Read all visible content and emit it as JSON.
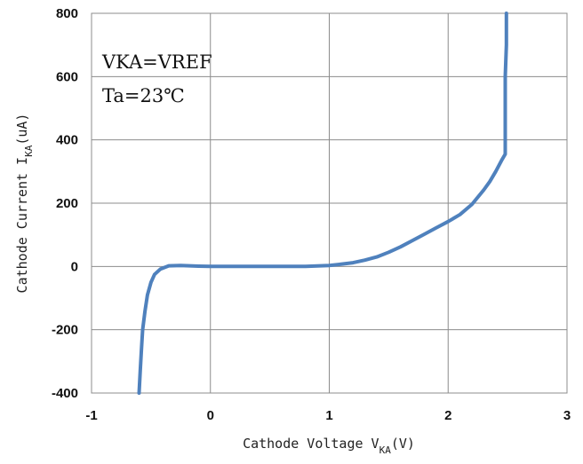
{
  "chart_data": {
    "type": "line",
    "xlabel": {
      "main": "Cathode Voltage V",
      "sub": "KA",
      "suffix": "(V)"
    },
    "ylabel": {
      "main": "Cathode Current I",
      "sub": "KA",
      "suffix": "(uA)"
    },
    "xlim": [
      -1,
      3
    ],
    "ylim": [
      -400,
      800
    ],
    "xticks": [
      -1,
      0,
      1,
      2,
      3
    ],
    "yticks": [
      -400,
      -200,
      0,
      200,
      400,
      600,
      800
    ],
    "grid": true,
    "annotations": [
      "VKA=VREF",
      "Ta=23℃"
    ],
    "line_color": "#4F81BD",
    "series": [
      {
        "x": [
          -0.6,
          -0.59,
          -0.58,
          -0.57,
          -0.55,
          -0.53,
          -0.5,
          -0.47,
          -0.42,
          -0.35,
          -0.25,
          -0.1,
          0,
          0.2,
          0.5,
          0.8,
          1.0,
          1.1,
          1.2,
          1.3,
          1.4,
          1.5,
          1.6,
          1.7,
          1.8,
          1.9,
          2.0,
          2.1,
          2.2,
          2.3,
          2.35,
          2.4,
          2.45,
          2.48,
          2.48,
          2.48,
          2.49,
          2.49
        ],
        "y": [
          -400,
          -330,
          -260,
          -200,
          -140,
          -90,
          -50,
          -25,
          -8,
          2,
          3,
          1,
          0,
          0,
          0,
          0,
          3,
          7,
          12,
          20,
          30,
          45,
          62,
          82,
          102,
          122,
          142,
          164,
          196,
          242,
          268,
          300,
          335,
          355,
          450,
          600,
          700,
          800
        ]
      }
    ]
  }
}
